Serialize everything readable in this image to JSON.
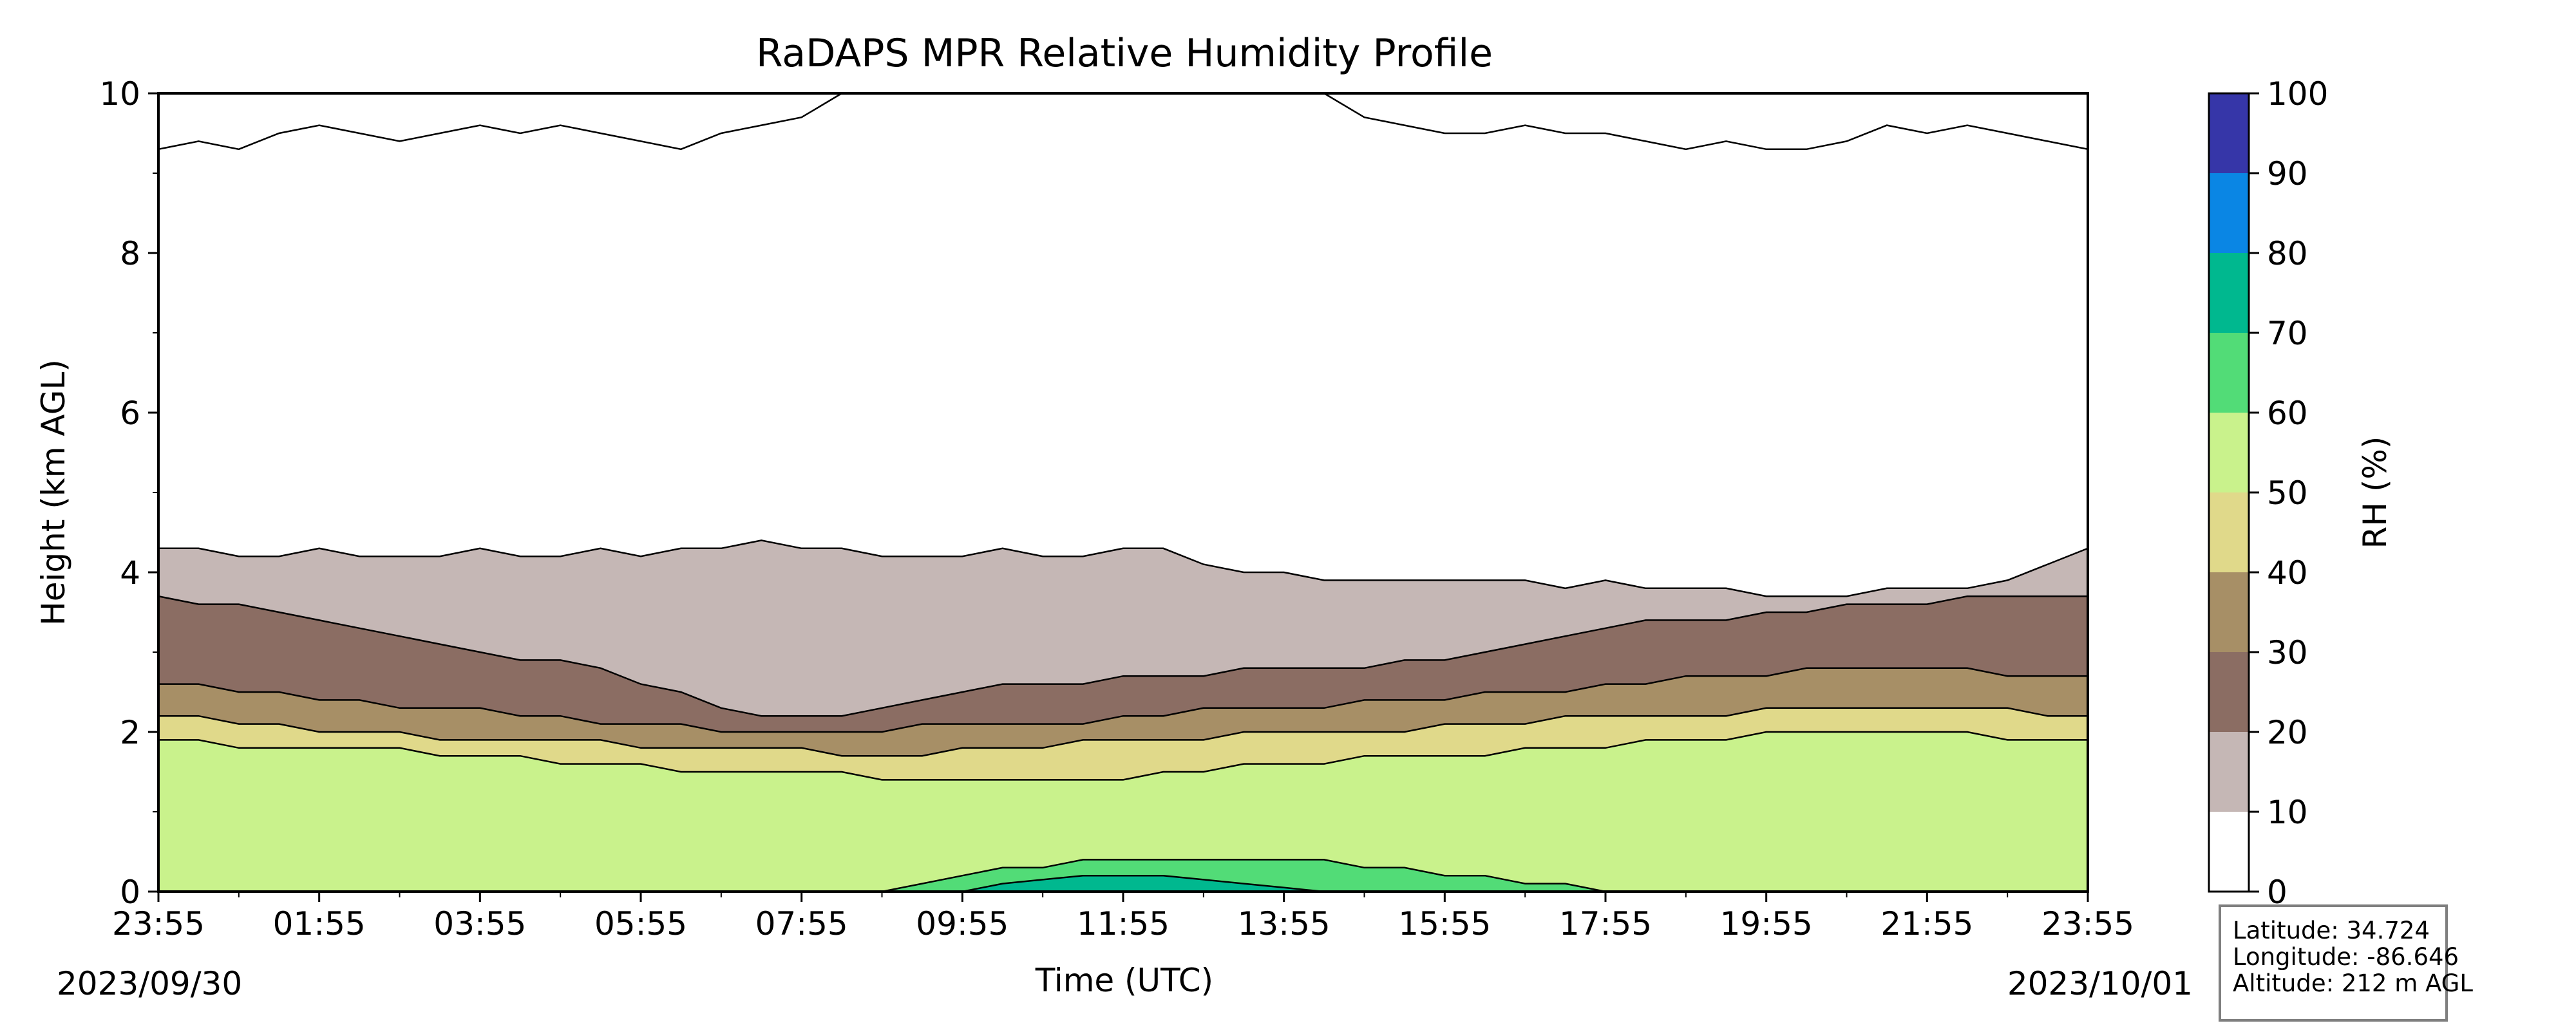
{
  "chart_data": {
    "type": "heatmap",
    "title": "RaDAPS MPR Relative Humidity Profile",
    "xlabel": "Time (UTC)",
    "ylabel": "Height (km AGL)",
    "x_ticks": [
      "23:55",
      "01:55",
      "03:55",
      "05:55",
      "07:55",
      "09:55",
      "11:55",
      "13:55",
      "15:55",
      "17:55",
      "19:55",
      "21:55",
      "23:55"
    ],
    "x_range_hours": [
      0,
      24
    ],
    "start_date": "2023/09/30",
    "end_date": "2023/10/01",
    "ylim": [
      0,
      10
    ],
    "y_ticks": [
      0,
      2,
      4,
      6,
      8,
      10
    ],
    "colorbar": {
      "label": "RH (%)",
      "levels": [
        0,
        10,
        20,
        30,
        40,
        50,
        60,
        70,
        80,
        90,
        100
      ],
      "colors": [
        "#ffffff",
        "#c5b7b5",
        "#8b6d63",
        "#a78f66",
        "#e0d98a",
        "#c9f28c",
        "#52dc77",
        "#00b88f",
        "#0a86e4",
        "#3636a8"
      ]
    },
    "bands": [
      {
        "name": "0-10",
        "range": [
          0,
          10
        ],
        "top_km": [
          9.3,
          9.4,
          9.3,
          9.5,
          9.6,
          9.5,
          9.4,
          9.5,
          9.6,
          9.5,
          9.6,
          9.5,
          9.4,
          9.3,
          9.5,
          9.6,
          9.7,
          10.0,
          10.0,
          10.0,
          10.0,
          10.0,
          10.0,
          10.0,
          10.0,
          10.0,
          10.0,
          10.0,
          10.0,
          10.0,
          9.7,
          9.6,
          9.5,
          9.5,
          9.6,
          9.5,
          9.5,
          9.4,
          9.3,
          9.4,
          9.3,
          9.3,
          9.4,
          9.6,
          9.5,
          9.6,
          9.5,
          9.4,
          9.3
        ]
      },
      {
        "name": "10-20",
        "range": [
          10,
          20
        ],
        "top_km": [
          4.3,
          4.3,
          4.2,
          4.2,
          4.3,
          4.2,
          4.2,
          4.2,
          4.3,
          4.2,
          4.2,
          4.3,
          4.2,
          4.3,
          4.3,
          4.4,
          4.3,
          4.3,
          4.2,
          4.2,
          4.2,
          4.3,
          4.2,
          4.2,
          4.3,
          4.3,
          4.1,
          4.0,
          4.0,
          3.9,
          3.9,
          3.9,
          3.9,
          3.9,
          3.9,
          3.8,
          3.9,
          3.8,
          3.8,
          3.8,
          3.7,
          3.7,
          3.7,
          3.8,
          3.8,
          3.8,
          3.9,
          4.1,
          4.3
        ]
      },
      {
        "name": "20-30",
        "range": [
          20,
          30
        ],
        "top_km": [
          3.7,
          3.6,
          3.6,
          3.5,
          3.4,
          3.3,
          3.2,
          3.1,
          3.0,
          2.9,
          2.9,
          2.8,
          2.6,
          2.5,
          2.3,
          2.2,
          2.2,
          2.2,
          2.3,
          2.4,
          2.5,
          2.6,
          2.6,
          2.6,
          2.7,
          2.7,
          2.7,
          2.8,
          2.8,
          2.8,
          2.8,
          2.9,
          2.9,
          3.0,
          3.1,
          3.2,
          3.3,
          3.4,
          3.4,
          3.4,
          3.5,
          3.5,
          3.6,
          3.6,
          3.6,
          3.7,
          3.7,
          3.7,
          3.7
        ]
      },
      {
        "name": "30-40",
        "range": [
          30,
          40
        ],
        "top_km": [
          2.6,
          2.6,
          2.5,
          2.5,
          2.4,
          2.4,
          2.3,
          2.3,
          2.3,
          2.2,
          2.2,
          2.1,
          2.1,
          2.1,
          2.0,
          2.0,
          2.0,
          2.0,
          2.0,
          2.1,
          2.1,
          2.1,
          2.1,
          2.1,
          2.2,
          2.2,
          2.3,
          2.3,
          2.3,
          2.3,
          2.4,
          2.4,
          2.4,
          2.5,
          2.5,
          2.5,
          2.6,
          2.6,
          2.7,
          2.7,
          2.7,
          2.8,
          2.8,
          2.8,
          2.8,
          2.8,
          2.7,
          2.7,
          2.7
        ]
      },
      {
        "name": "40-50",
        "range": [
          40,
          50
        ],
        "top_km": [
          2.2,
          2.2,
          2.1,
          2.1,
          2.0,
          2.0,
          2.0,
          1.9,
          1.9,
          1.9,
          1.9,
          1.9,
          1.8,
          1.8,
          1.8,
          1.8,
          1.8,
          1.7,
          1.7,
          1.7,
          1.8,
          1.8,
          1.8,
          1.9,
          1.9,
          1.9,
          1.9,
          2.0,
          2.0,
          2.0,
          2.0,
          2.0,
          2.1,
          2.1,
          2.1,
          2.2,
          2.2,
          2.2,
          2.2,
          2.2,
          2.3,
          2.3,
          2.3,
          2.3,
          2.3,
          2.3,
          2.3,
          2.2,
          2.2
        ]
      },
      {
        "name": "50-60",
        "range": [
          50,
          60
        ],
        "top_km": [
          1.9,
          1.9,
          1.8,
          1.8,
          1.8,
          1.8,
          1.8,
          1.7,
          1.7,
          1.7,
          1.6,
          1.6,
          1.6,
          1.5,
          1.5,
          1.5,
          1.5,
          1.5,
          1.4,
          1.4,
          1.4,
          1.4,
          1.4,
          1.4,
          1.4,
          1.5,
          1.5,
          1.6,
          1.6,
          1.6,
          1.7,
          1.7,
          1.7,
          1.7,
          1.8,
          1.8,
          1.8,
          1.9,
          1.9,
          1.9,
          2.0,
          2.0,
          2.0,
          2.0,
          2.0,
          2.0,
          1.9,
          1.9,
          1.9
        ]
      },
      {
        "name": "60-70",
        "range": [
          60,
          70
        ],
        "top_km": [
          0.0,
          0.0,
          0.0,
          0.0,
          0.0,
          0.0,
          0.0,
          0.0,
          0.0,
          0.0,
          0.0,
          0.0,
          0.0,
          0.0,
          0.0,
          0.0,
          0.0,
          0.0,
          0.0,
          0.1,
          0.2,
          0.3,
          0.3,
          0.4,
          0.4,
          0.4,
          0.4,
          0.4,
          0.4,
          0.4,
          0.3,
          0.3,
          0.2,
          0.2,
          0.1,
          0.1,
          0.0,
          0.0,
          0.0,
          0.0,
          0.0,
          0.0,
          0.0,
          0.0,
          0.0,
          0.0,
          0.0,
          0.0,
          0.0
        ]
      },
      {
        "name": "70-80",
        "range": [
          70,
          80
        ],
        "top_km": [
          0.0,
          0.0,
          0.0,
          0.0,
          0.0,
          0.0,
          0.0,
          0.0,
          0.0,
          0.0,
          0.0,
          0.0,
          0.0,
          0.0,
          0.0,
          0.0,
          0.0,
          0.0,
          0.0,
          0.0,
          0.0,
          0.1,
          0.15,
          0.2,
          0.2,
          0.2,
          0.15,
          0.1,
          0.05,
          0.0,
          0.0,
          0.0,
          0.0,
          0.0,
          0.0,
          0.0,
          0.0,
          0.0,
          0.0,
          0.0,
          0.0,
          0.0,
          0.0,
          0.0,
          0.0,
          0.0,
          0.0,
          0.0,
          0.0
        ]
      }
    ],
    "info": {
      "latitude": "Latitude: 34.724",
      "longitude": "Longitude: -86.646",
      "altitude": "Altitude: 212 m AGL"
    }
  }
}
